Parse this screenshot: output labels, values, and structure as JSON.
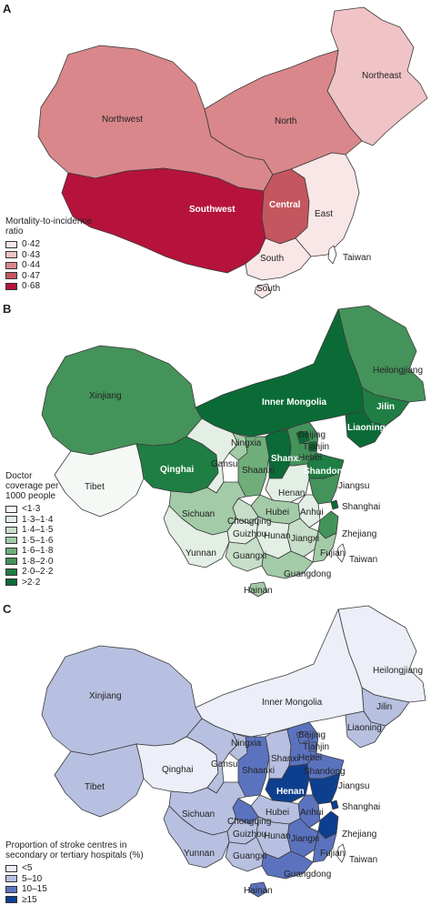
{
  "panels": {
    "A": {
      "label": "A",
      "legend_title_1": "Mortality-to-incidence",
      "legend_title_2": "ratio",
      "legend": [
        {
          "label": "0·42",
          "color": "#f9e6e7"
        },
        {
          "label": "0·43",
          "color": "#f0c3c6"
        },
        {
          "label": "0·44",
          "color": "#d9878b"
        },
        {
          "label": "0·47",
          "color": "#c4565f"
        },
        {
          "label": "0·68",
          "color": "#b5133b"
        }
      ],
      "regions": {
        "northwest": "Northwest",
        "north": "North",
        "northeast": "Northeast",
        "southwest": "Southwest",
        "central": "Central",
        "east": "East",
        "south": "South",
        "south2": "South",
        "taiwan": "Taiwan"
      }
    },
    "B": {
      "label": "B",
      "legend_title_1": "Doctor",
      "legend_title_2": "coverage per",
      "legend_title_3": "1000 people",
      "legend": [
        {
          "label": "<1·3",
          "color": "#f5f9f5"
        },
        {
          "label": "1·3–1·4",
          "color": "#e3efe4"
        },
        {
          "label": "1·4–1·5",
          "color": "#c7dfc9"
        },
        {
          "label": "1·5–1·6",
          "color": "#a3cba7"
        },
        {
          "label": "1·6–1·8",
          "color": "#6fae79"
        },
        {
          "label": "1·8–2·0",
          "color": "#44935a"
        },
        {
          "label": "2·0–2·2",
          "color": "#1f7e44"
        },
        {
          "label": ">2·2",
          "color": "#0b6b37"
        }
      ],
      "regions": {
        "xinjiang": "Xinjiang",
        "tibet": "Tibet",
        "qinghai": "Qinghai",
        "gansu": "Gansu",
        "ningxia": "Ningxia",
        "shaanxi": "Shaanxi",
        "sichuan": "Sichuan",
        "chongqing": "Chongqing",
        "yunnan": "Yunnan",
        "guizhou": "Guizhou",
        "guangxi": "Guangxi",
        "hainan": "Hainan",
        "guangdong": "Guangdong",
        "hunan": "Hunan",
        "hubei": "Hubei",
        "henan": "Henan",
        "anhui": "Anhui",
        "jiangxi": "Jiangxi",
        "fujian": "Fujian",
        "zhejiang": "Zhejiang",
        "shanghai": "Shanghai",
        "jiangsu": "Jiangsu",
        "shandong": "Shandong",
        "shanxi": "Shanxi",
        "hebei": "Hebei",
        "beijing": "Beijing",
        "tianjin": "Tianjin",
        "innermongolia": "Inner Mongolia",
        "liaoning": "Liaoning",
        "jilin": "Jilin",
        "heilongjiang": "Heilongjiang",
        "taiwan": "Taiwan"
      }
    },
    "C": {
      "label": "C",
      "legend_title_1": "Proportion of stroke centres in",
      "legend_title_2": "secondary or tertiary hospitals (%)",
      "legend": [
        {
          "label": "<5",
          "color": "#eceff8"
        },
        {
          "label": "5–10",
          "color": "#b7c0e0"
        },
        {
          "label": "10–15",
          "color": "#5b73bf"
        },
        {
          "label": "≥15",
          "color": "#0e3f8e"
        }
      ],
      "regions": {
        "xinjiang": "Xinjiang",
        "tibet": "Tibet",
        "qinghai": "Qinghai",
        "gansu": "Gansu",
        "ningxia": "Ningxia",
        "shaanxi": "Shaanxi",
        "sichuan": "Sichuan",
        "chongqing": "Chongqing",
        "yunnan": "Yunnan",
        "guizhou": "Guizhou",
        "guangxi": "Guangxi",
        "hainan": "Hainan",
        "guangdong": "Guangdong",
        "hunan": "Hunan",
        "hubei": "Hubei",
        "henan": "Henan",
        "anhui": "Anhui",
        "jiangxi": "Jiangxi",
        "fujian": "Fujian",
        "zhejiang": "Zhejiang",
        "shanghai": "Shanghai",
        "jiangsu": "Jiangsu",
        "shandong": "Shandong",
        "shanxi": "Shanxi",
        "hebei": "Hebei",
        "beijing": "Beijing",
        "tianjin": "Tianjin",
        "innermongolia": "Inner Mongolia",
        "liaoning": "Liaoning",
        "jilin": "Jilin",
        "heilongjiang": "Heilongjiang",
        "taiwan": "Taiwan"
      }
    }
  }
}
